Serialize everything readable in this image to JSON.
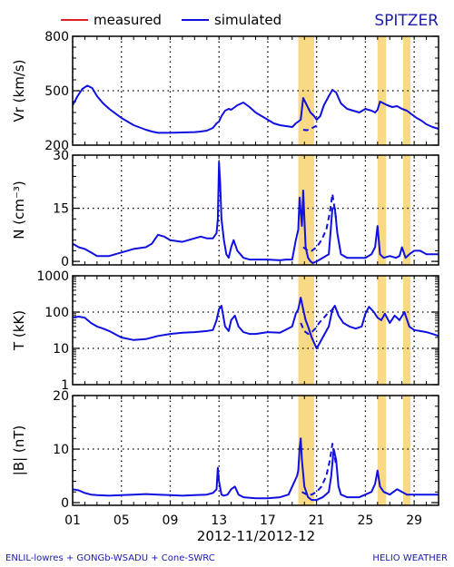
{
  "legend": {
    "measured": "measured",
    "simulated": "simulated"
  },
  "spacecraft": "SPITZER",
  "footer": {
    "left": "ENLIL-lowres + GONGb-WSADU + Cone-SWRC",
    "right": "HELIO  WEATHER"
  },
  "colors": {
    "simulated": "#1010e0",
    "measured": "#e02020",
    "highlight": "#f8d985",
    "grid": "#000000",
    "spacecraft": "#1a1ab0"
  },
  "chart_data": {
    "type": "line",
    "xlabel": "2012-11/2012-12",
    "xlim": [
      1,
      31
    ],
    "x_ticks": [
      1,
      5,
      9,
      13,
      17,
      21,
      25,
      29
    ],
    "x_tick_labels": [
      "01",
      "05",
      "09",
      "13",
      "17",
      "21",
      "25",
      "29"
    ],
    "highlight_bands": [
      [
        19.5,
        20.8
      ],
      [
        26.0,
        26.7
      ],
      [
        28.1,
        28.7
      ]
    ],
    "panels": [
      {
        "ylabel": "Vr (km/s)",
        "scale": "linear",
        "ylim": [
          200,
          800
        ],
        "yticks": [
          200,
          500,
          800
        ],
        "ytick_labels": [
          "200",
          "500",
          "800"
        ],
        "grid_y": [
          500
        ],
        "series": [
          {
            "name": "simulated",
            "style": "solid",
            "x": [
              1,
              1.4,
              1.8,
              2.2,
              2.6,
              3.0,
              3.5,
              4,
              5,
              6,
              7,
              7.5,
              8,
              9,
              10,
              11,
              11.5,
              12,
              12.5,
              12.8,
              13.0,
              13.2,
              13.5,
              13.8,
              14.0,
              14.5,
              15.0,
              15.5,
              16.0,
              16.5,
              17.0,
              17.5,
              18.0,
              18.5,
              19.0,
              19.3,
              19.5,
              19.7,
              19.9,
              20.2,
              20.5,
              20.8,
              21.0,
              21.3,
              21.6,
              22.0,
              22.3,
              22.6,
              23.0,
              23.5,
              24.0,
              24.5,
              25.0,
              25.5,
              25.8,
              26.0,
              26.2,
              26.5,
              26.8,
              27.2,
              27.6,
              28.0,
              28.4,
              28.8,
              29.2,
              29.6,
              30.0,
              30.5,
              31
            ],
            "y": [
              420,
              470,
              510,
              528,
              515,
              470,
              430,
              400,
              350,
              310,
              285,
              275,
              268,
              268,
              270,
              272,
              275,
              280,
              295,
              320,
              330,
              360,
              390,
              400,
              395,
              420,
              435,
              410,
              380,
              360,
              340,
              320,
              310,
              305,
              300,
              320,
              330,
              340,
              460,
              420,
              380,
              360,
              340,
              360,
              420,
              470,
              505,
              490,
              430,
              400,
              390,
              380,
              400,
              390,
              380,
              395,
              440,
              430,
              420,
              410,
              415,
              400,
              390,
              370,
              350,
              335,
              315,
              300,
              290
            ]
          },
          {
            "name": "simulated (dashed)",
            "style": "dashed",
            "x": [
              19.9,
              20.2,
              20.5,
              20.8,
              21.2
            ],
            "y": [
              285,
              282,
              290,
              300,
              315
            ]
          }
        ]
      },
      {
        "ylabel": "N (cm⁻³)",
        "scale": "linear",
        "ylim": [
          -1,
          30
        ],
        "yticks": [
          0,
          15,
          30
        ],
        "ytick_labels": [
          "0",
          "15",
          "30"
        ],
        "grid_y": [
          15
        ],
        "series": [
          {
            "name": "simulated",
            "style": "solid",
            "x": [
              1,
              1.5,
              2,
              2.5,
              3,
              4,
              5,
              6,
              7,
              7.5,
              8,
              8.5,
              9,
              10,
              11,
              11.5,
              12,
              12.5,
              12.8,
              12.9,
              13.0,
              13.1,
              13.2,
              13.4,
              13.6,
              13.8,
              14.0,
              14.2,
              14.5,
              15.0,
              15.5,
              16,
              17,
              18,
              18.5,
              19.0,
              19.3,
              19.5,
              19.6,
              19.8,
              19.9,
              20.1,
              20.3,
              20.5,
              20.7,
              21.0,
              21.5,
              22.0,
              22.3,
              22.5,
              22.7,
              23.0,
              23.5,
              24,
              24.5,
              25,
              25.5,
              25.8,
              26.0,
              26.2,
              26.5,
              27,
              27.5,
              27.8,
              28.0,
              28.3,
              28.6,
              29,
              29.5,
              30,
              30.5,
              31
            ],
            "y": [
              5,
              4,
              3.5,
              2.5,
              1.5,
              1.5,
              2.5,
              3.5,
              4,
              5,
              7.5,
              7,
              6,
              5.5,
              6.5,
              7,
              6.5,
              6.5,
              8,
              12,
              28,
              22,
              12,
              6,
              2,
              1,
              4,
              6,
              3,
              1,
              0.5,
              0.5,
              0.5,
              0.3,
              0.5,
              0.5,
              6,
              9,
              18,
              10,
              20,
              4,
              1,
              0,
              -0.5,
              0,
              1,
              2,
              15,
              15,
              8,
              2,
              1,
              1,
              1,
              1,
              2,
              4,
              10,
              2,
              1,
              1.5,
              1,
              1.5,
              4,
              1,
              2,
              3,
              3,
              2,
              2,
              2
            ]
          },
          {
            "name": "simulated (dashed)",
            "style": "dashed",
            "x": [
              19.9,
              20.3,
              20.6,
              21.0,
              21.4,
              21.8,
              22.1,
              22.3,
              22.6
            ],
            "y": [
              4,
              3,
              3,
              4,
              6,
              9,
              14,
              19,
              12
            ]
          }
        ]
      },
      {
        "ylabel": "T (kK)",
        "scale": "log",
        "ylim": [
          1,
          1000
        ],
        "yticks": [
          1,
          10,
          100,
          1000
        ],
        "ytick_labels": [
          "1",
          "10",
          "100",
          "1000"
        ],
        "grid_y": [
          100,
          10
        ],
        "series": [
          {
            "name": "simulated",
            "style": "solid",
            "x": [
              1,
              1.5,
              2,
              2.5,
              3,
              3.5,
              4,
              5,
              6,
              7,
              8,
              9,
              10,
              11,
              12,
              12.5,
              12.8,
              13.0,
              13.2,
              13.5,
              13.8,
              14.0,
              14.3,
              14.6,
              15.0,
              15.5,
              16,
              17,
              18,
              19.0,
              19.3,
              19.5,
              19.7,
              19.9,
              20.1,
              20.3,
              20.6,
              21.0,
              21.2,
              21.5,
              22.0,
              22.3,
              22.5,
              22.8,
              23.2,
              23.7,
              24.2,
              24.7,
              25.0,
              25.3,
              25.7,
              26.0,
              26.3,
              26.6,
              27.0,
              27.4,
              27.8,
              28.2,
              28.6,
              29.0,
              29.5,
              30.0,
              30.5,
              31
            ],
            "y": [
              70,
              75,
              70,
              50,
              40,
              35,
              30,
              20,
              17,
              18,
              22,
              25,
              27,
              28,
              30,
              32,
              60,
              120,
              150,
              40,
              30,
              60,
              80,
              40,
              28,
              25,
              25,
              28,
              27,
              40,
              90,
              120,
              250,
              120,
              60,
              40,
              20,
              10,
              13,
              20,
              40,
              120,
              150,
              80,
              50,
              40,
              35,
              40,
              90,
              140,
              100,
              70,
              60,
              90,
              50,
              80,
              60,
              100,
              40,
              32,
              30,
              28,
              25,
              22
            ]
          },
          {
            "name": "simulated (dashed)",
            "style": "dashed",
            "x": [
              19.7,
              20.0,
              20.3,
              20.6,
              20.9,
              21.2,
              21.6,
              22.0,
              22.4
            ],
            "y": [
              50,
              30,
              25,
              28,
              35,
              50,
              70,
              100,
              120
            ]
          }
        ]
      },
      {
        "ylabel": "|B| (nT)",
        "scale": "linear",
        "ylim": [
          -0.5,
          20
        ],
        "yticks": [
          0,
          10,
          20
        ],
        "ytick_labels": [
          "0",
          "10",
          "20"
        ],
        "grid_y": [
          10
        ],
        "series": [
          {
            "name": "simulated",
            "style": "solid",
            "x": [
              1,
              1.5,
              2,
              2.5,
              3,
              4,
              5,
              6,
              7,
              8,
              9,
              10,
              11,
              12,
              12.5,
              12.8,
              12.9,
              13.0,
              13.2,
              13.4,
              13.7,
              14.0,
              14.3,
              14.6,
              15,
              16,
              17,
              18,
              18.7,
              19.0,
              19.2,
              19.4,
              19.5,
              19.6,
              19.7,
              19.8,
              20.0,
              20.3,
              20.6,
              21.0,
              21.5,
              22.0,
              22.2,
              22.4,
              22.6,
              22.8,
              23.0,
              23.5,
              24,
              24.5,
              25,
              25.5,
              25.8,
              26.0,
              26.2,
              26.5,
              27.0,
              27.3,
              27.6,
              28.0,
              28.4,
              28.8,
              29.2,
              29.8,
              30.5,
              31
            ],
            "y": [
              2.5,
              2.3,
              1.8,
              1.5,
              1.4,
              1.3,
              1.4,
              1.5,
              1.6,
              1.5,
              1.4,
              1.3,
              1.4,
              1.5,
              1.8,
              2.5,
              6.5,
              4,
              1.5,
              1.3,
              1.5,
              2.5,
              3,
              1.5,
              1,
              0.8,
              0.8,
              1,
              1.5,
              3,
              4,
              5,
              6,
              10,
              12,
              8,
              3,
              1,
              0.5,
              0.5,
              1,
              2,
              5,
              10,
              8,
              3,
              1.5,
              1,
              1,
              1,
              1.5,
              2,
              3.5,
              6,
              3,
              2,
              1.5,
              2,
              2.5,
              2,
              1.5,
              1.5,
              1.5,
              1.5,
              1.5,
              1.5
            ]
          },
          {
            "name": "simulated (dashed)",
            "style": "dashed",
            "x": [
              19.8,
              20.2,
              20.6,
              21.0,
              21.4,
              21.8,
              22.1,
              22.3,
              22.6
            ],
            "y": [
              2,
              1.5,
              1.5,
              2,
              3,
              5,
              8,
              11,
              7
            ]
          }
        ]
      }
    ]
  }
}
